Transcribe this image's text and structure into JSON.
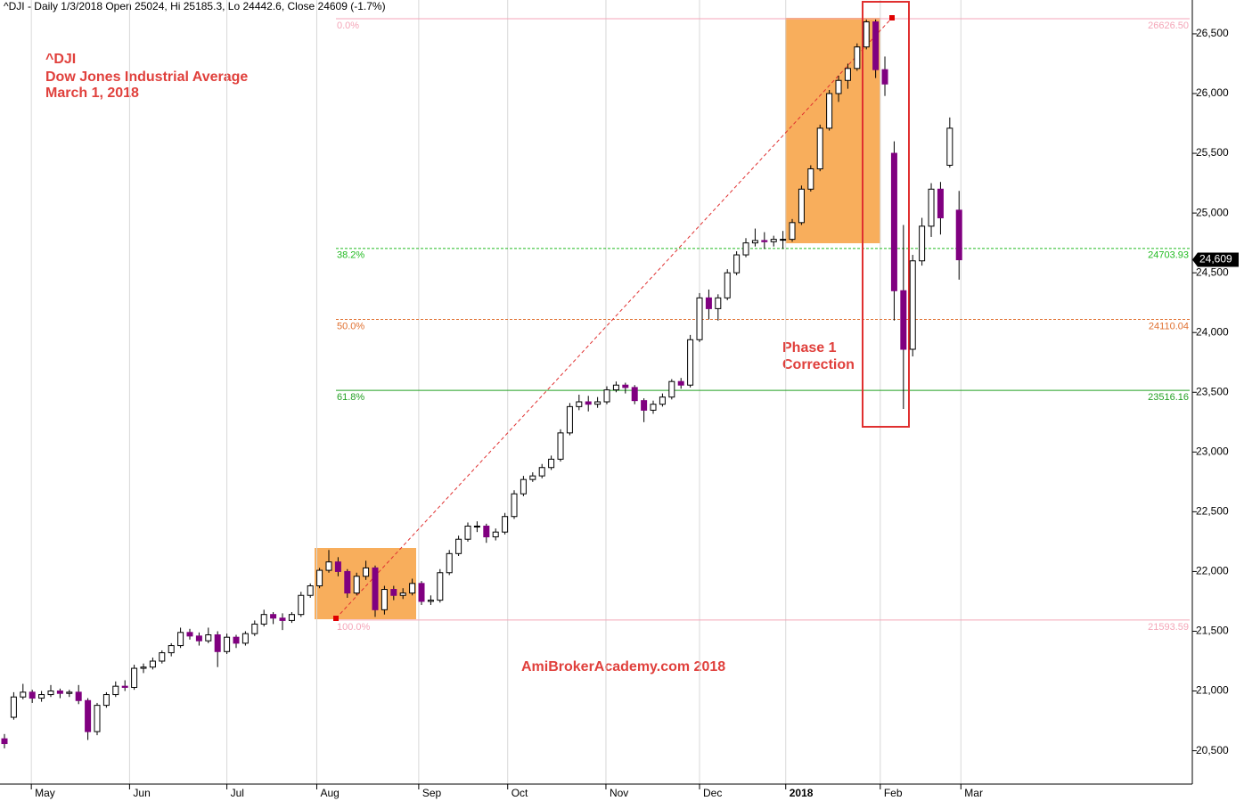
{
  "chart_data": {
    "type": "candlestick",
    "title": "^DJI - Daily 1/3/2018 Open 25024, Hi 25185.3, Lo 24442.6, Close 24609 (-1.7%)",
    "annotations": {
      "symbol": "^DJI",
      "name": "Dow Jones Industrial Average",
      "date": "March 1, 2018",
      "phase1": "Phase 1",
      "phase2": "Correction",
      "watermark": "AmiBrokerAcademy.com  2018"
    },
    "up_color": "#ffffff",
    "down_color": "#800080",
    "xlim": [
      -0.48,
      128.17
    ],
    "ylim": [
      20221,
      26783
    ],
    "xticks": [
      {
        "value": 2.9,
        "label": "May"
      },
      {
        "value": 13.5,
        "label": "Jun"
      },
      {
        "value": 24,
        "label": "Jul"
      },
      {
        "value": 33.7,
        "label": "Aug"
      },
      {
        "value": 44.7,
        "label": "Sep"
      },
      {
        "value": 54.3,
        "label": "Oct"
      },
      {
        "value": 64.9,
        "label": "Nov"
      },
      {
        "value": 75,
        "label": "Dec"
      },
      {
        "value": 84.3,
        "label": "2018"
      },
      {
        "value": 94.5,
        "label": "Feb"
      },
      {
        "value": 103.2,
        "label": "Mar"
      }
    ],
    "yticks": [
      {
        "value": 20500,
        "label": "20,500"
      },
      {
        "value": 21000,
        "label": "21,000"
      },
      {
        "value": 21500,
        "label": "21,500"
      },
      {
        "value": 22000,
        "label": "22,000"
      },
      {
        "value": 22500,
        "label": "22,500"
      },
      {
        "value": 23000,
        "label": "23,000"
      },
      {
        "value": 23500,
        "label": "23,500"
      },
      {
        "value": 24000,
        "label": "24,000"
      },
      {
        "value": 24500,
        "label": "24,500"
      },
      {
        "value": 25000,
        "label": "25,000"
      },
      {
        "value": 25500,
        "label": "25,500"
      },
      {
        "value": 26000,
        "label": "26,000"
      },
      {
        "value": 26500,
        "label": "26,500"
      }
    ],
    "levels": [
      {
        "label": "0.0%",
        "value": 26626.5,
        "value_label": "26626.50",
        "color": "#f4a6b8",
        "dash": false
      },
      {
        "label": "38.2%",
        "value": 24703.93,
        "value_label": "24703.93",
        "color": "#22bb22",
        "dash": true
      },
      {
        "label": "50.0%",
        "value": 24110.04,
        "value_label": "24110.04",
        "color": "#e07030",
        "dash": true
      },
      {
        "label": "61.8%",
        "value": 23516.16,
        "value_label": "23516.16",
        "color": "#22a022",
        "dash": false
      },
      {
        "label": "100.0%",
        "value": 21593.59,
        "value_label": "21593.59",
        "color": "#f4a6b8",
        "dash": false
      }
    ],
    "price_tag": {
      "value": 24609,
      "label": "24,609"
    },
    "ohlc": [
      [
        20600,
        20640,
        20520,
        20560
      ],
      [
        20780,
        20990,
        20760,
        20950
      ],
      [
        20950,
        21060,
        20930,
        20990
      ],
      [
        20990,
        21010,
        20900,
        20940
      ],
      [
        20940,
        21000,
        20910,
        20970
      ],
      [
        20970,
        21050,
        20950,
        21000
      ],
      [
        21000,
        21020,
        20940,
        20980
      ],
      [
        20980,
        21010,
        20950,
        20990
      ],
      [
        20990,
        21050,
        20890,
        20920
      ],
      [
        20920,
        20940,
        20590,
        20660
      ],
      [
        20660,
        20900,
        20630,
        20880
      ],
      [
        20880,
        20990,
        20860,
        20970
      ],
      [
        20970,
        21080,
        20950,
        21040
      ],
      [
        21040,
        21090,
        21000,
        21030
      ],
      [
        21030,
        21220,
        21010,
        21190
      ],
      [
        21190,
        21230,
        21150,
        21200
      ],
      [
        21200,
        21280,
        21180,
        21250
      ],
      [
        21250,
        21340,
        21230,
        21320
      ],
      [
        21320,
        21400,
        21290,
        21380
      ],
      [
        21380,
        21530,
        21360,
        21490
      ],
      [
        21490,
        21520,
        21430,
        21460
      ],
      [
        21460,
        21490,
        21380,
        21420
      ],
      [
        21420,
        21530,
        21400,
        21470
      ],
      [
        21470,
        21500,
        21200,
        21330
      ],
      [
        21330,
        21480,
        21310,
        21450
      ],
      [
        21450,
        21470,
        21360,
        21400
      ],
      [
        21400,
        21500,
        21380,
        21480
      ],
      [
        21480,
        21590,
        21460,
        21560
      ],
      [
        21560,
        21680,
        21540,
        21640
      ],
      [
        21640,
        21660,
        21560,
        21610
      ],
      [
        21610,
        21650,
        21510,
        21590
      ],
      [
        21590,
        21660,
        21570,
        21640
      ],
      [
        21640,
        21830,
        21620,
        21800
      ],
      [
        21800,
        21900,
        21780,
        21880
      ],
      [
        21880,
        22030,
        21860,
        22010
      ],
      [
        22010,
        22180,
        21990,
        22080
      ],
      [
        22080,
        22120,
        21960,
        22000
      ],
      [
        22000,
        22020,
        21780,
        21820
      ],
      [
        21820,
        21990,
        21800,
        21960
      ],
      [
        21960,
        22090,
        21930,
        22030
      ],
      [
        22030,
        22050,
        21620,
        21680
      ],
      [
        21680,
        21880,
        21640,
        21850
      ],
      [
        21850,
        21880,
        21760,
        21800
      ],
      [
        21800,
        21860,
        21770,
        21820
      ],
      [
        21820,
        21940,
        21800,
        21900
      ],
      [
        21900,
        21920,
        21720,
        21750
      ],
      [
        21750,
        21800,
        21720,
        21760
      ],
      [
        21760,
        22020,
        21740,
        21990
      ],
      [
        21990,
        22180,
        21970,
        22150
      ],
      [
        22150,
        22300,
        22130,
        22270
      ],
      [
        22270,
        22410,
        22250,
        22380
      ],
      [
        22380,
        22420,
        22330,
        22380
      ],
      [
        22380,
        22400,
        22240,
        22290
      ],
      [
        22290,
        22360,
        22260,
        22330
      ],
      [
        22330,
        22490,
        22310,
        22460
      ],
      [
        22460,
        22680,
        22440,
        22650
      ],
      [
        22650,
        22800,
        22630,
        22770
      ],
      [
        22770,
        22830,
        22750,
        22800
      ],
      [
        22800,
        22900,
        22780,
        22870
      ],
      [
        22870,
        22970,
        22850,
        22940
      ],
      [
        22940,
        23190,
        22920,
        23160
      ],
      [
        23160,
        23410,
        23140,
        23380
      ],
      [
        23380,
        23480,
        23350,
        23420
      ],
      [
        23420,
        23470,
        23340,
        23400
      ],
      [
        23400,
        23460,
        23370,
        23420
      ],
      [
        23420,
        23550,
        23400,
        23520
      ],
      [
        23520,
        23590,
        23500,
        23560
      ],
      [
        23560,
        23580,
        23490,
        23540
      ],
      [
        23540,
        23560,
        23400,
        23430
      ],
      [
        23430,
        23450,
        23250,
        23350
      ],
      [
        23350,
        23430,
        23320,
        23400
      ],
      [
        23400,
        23490,
        23380,
        23460
      ],
      [
        23460,
        23610,
        23440,
        23590
      ],
      [
        23590,
        23620,
        23530,
        23560
      ],
      [
        23560,
        23980,
        23540,
        23940
      ],
      [
        23940,
        24330,
        23920,
        24290
      ],
      [
        24290,
        24360,
        24110,
        24200
      ],
      [
        24200,
        24320,
        24100,
        24290
      ],
      [
        24290,
        24530,
        24270,
        24500
      ],
      [
        24500,
        24680,
        24480,
        24650
      ],
      [
        24650,
        24790,
        24630,
        24750
      ],
      [
        24750,
        24870,
        24720,
        24770
      ],
      [
        24770,
        24840,
        24700,
        24760
      ],
      [
        24760,
        24810,
        24720,
        24780
      ],
      [
        24780,
        24850,
        24700,
        24780
      ],
      [
        24780,
        24950,
        24760,
        24920
      ],
      [
        24920,
        25230,
        24900,
        25200
      ],
      [
        25200,
        25400,
        25180,
        25370
      ],
      [
        25370,
        25740,
        25350,
        25710
      ],
      [
        25710,
        26030,
        25690,
        26000
      ],
      [
        26000,
        26150,
        25930,
        26110
      ],
      [
        26110,
        26250,
        26040,
        26210
      ],
      [
        26210,
        26420,
        26190,
        26390
      ],
      [
        26390,
        26620,
        26370,
        26600
      ],
      [
        26600,
        26620,
        26130,
        26200
      ],
      [
        26200,
        26310,
        25980,
        26080
      ],
      [
        25500,
        25600,
        24100,
        24350
      ],
      [
        24350,
        24900,
        23360,
        23860
      ],
      [
        23860,
        24650,
        23800,
        24600
      ],
      [
        24600,
        24960,
        24560,
        24890
      ],
      [
        24890,
        25250,
        24800,
        25200
      ],
      [
        25200,
        25260,
        24820,
        24960
      ],
      [
        25400,
        25800,
        25380,
        25710
      ],
      [
        25024,
        25185.3,
        24442.6,
        24609
      ]
    ]
  }
}
